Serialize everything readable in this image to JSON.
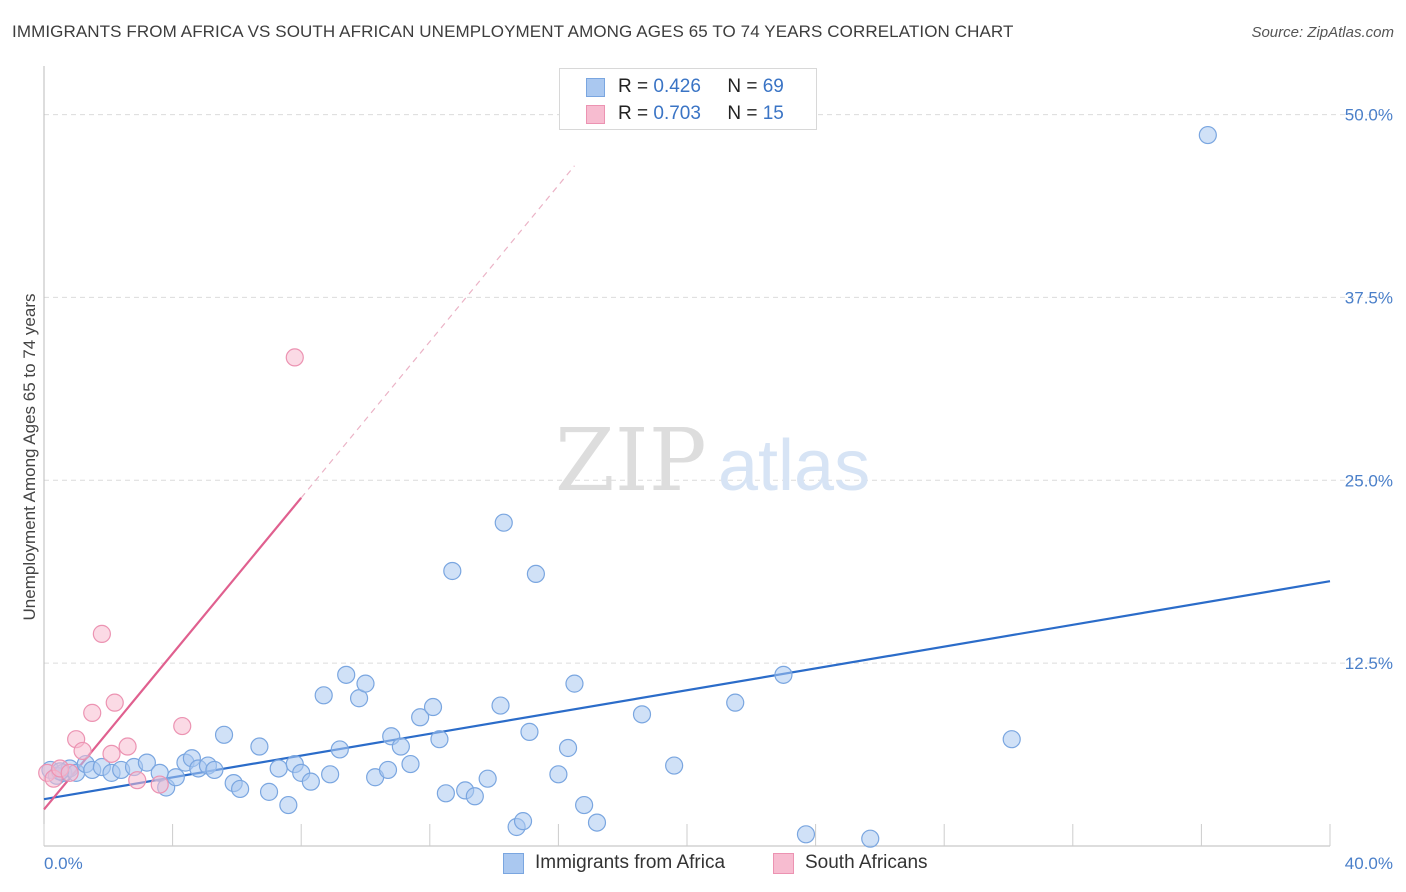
{
  "title": "IMMIGRANTS FROM AFRICA VS SOUTH AFRICAN UNEMPLOYMENT AMONG AGES 65 TO 74 YEARS CORRELATION CHART",
  "source": "Source: ZipAtlas.com",
  "watermark": {
    "zip": "ZIP",
    "atlas": "atlas"
  },
  "legend": {
    "r_label": "R =",
    "n_label": "N =",
    "series": [
      {
        "r": "0.426",
        "n": "69"
      },
      {
        "r": "0.703",
        "n": "15"
      }
    ]
  },
  "bottom_legend": [
    "Immigrants from Africa",
    "South Africans"
  ],
  "colors": {
    "blue_fill": "#aac8f0",
    "blue_stroke": "#7aa6e0",
    "blue_line": "#2b6cc9",
    "pink_fill": "#f7bcd0",
    "pink_stroke": "#ec93b2",
    "pink_line": "#e0608f",
    "grid": "#dcdcdc",
    "tick_text": "#4a7fc9"
  },
  "chart_data": {
    "type": "scatter",
    "title": "IMMIGRANTS FROM AFRICA VS SOUTH AFRICAN UNEMPLOYMENT AMONG AGES 65 TO 74 YEARS CORRELATION CHART",
    "xlabel": "",
    "ylabel": "Unemployment Among Ages 65 to 74 years",
    "xlim": [
      0,
      40
    ],
    "ylim": [
      0,
      52.5
    ],
    "x_tick_labels": [
      "0.0%",
      "40.0%"
    ],
    "y_ticks": [
      12.5,
      25.0,
      37.5,
      50.0
    ],
    "y_tick_labels": [
      "12.5%",
      "25.0%",
      "37.5%",
      "50.0%"
    ],
    "grid": true,
    "legend_position": "top-center",
    "series": [
      {
        "name": "Immigrants from Africa",
        "color": "#aac8f0",
        "r": 0.426,
        "n": 69,
        "trend": {
          "x": [
            0,
            40
          ],
          "y": [
            3.2,
            18.1
          ]
        },
        "points": [
          [
            0.2,
            5.2
          ],
          [
            0.4,
            4.8
          ],
          [
            0.6,
            5.0
          ],
          [
            0.8,
            5.3
          ],
          [
            1.0,
            5.0
          ],
          [
            1.3,
            5.6
          ],
          [
            1.5,
            5.2
          ],
          [
            1.8,
            5.4
          ],
          [
            2.1,
            5.0
          ],
          [
            2.4,
            5.2
          ],
          [
            2.8,
            5.4
          ],
          [
            3.2,
            5.7
          ],
          [
            3.6,
            5.0
          ],
          [
            3.8,
            4.0
          ],
          [
            4.1,
            4.7
          ],
          [
            4.4,
            5.7
          ],
          [
            4.6,
            6.0
          ],
          [
            4.8,
            5.3
          ],
          [
            5.1,
            5.5
          ],
          [
            5.3,
            5.2
          ],
          [
            5.6,
            7.6
          ],
          [
            5.9,
            4.3
          ],
          [
            6.1,
            3.9
          ],
          [
            6.7,
            6.8
          ],
          [
            7.0,
            3.7
          ],
          [
            7.3,
            5.3
          ],
          [
            7.6,
            2.8
          ],
          [
            7.8,
            5.6
          ],
          [
            8.0,
            5.0
          ],
          [
            8.3,
            4.4
          ],
          [
            8.7,
            10.3
          ],
          [
            8.9,
            4.9
          ],
          [
            9.2,
            6.6
          ],
          [
            9.4,
            11.7
          ],
          [
            9.8,
            10.1
          ],
          [
            10.0,
            11.1
          ],
          [
            10.3,
            4.7
          ],
          [
            10.7,
            5.2
          ],
          [
            10.8,
            7.5
          ],
          [
            11.1,
            6.8
          ],
          [
            11.4,
            5.6
          ],
          [
            11.7,
            8.8
          ],
          [
            12.1,
            9.5
          ],
          [
            12.3,
            7.3
          ],
          [
            12.5,
            3.6
          ],
          [
            12.7,
            18.8
          ],
          [
            13.1,
            3.8
          ],
          [
            13.4,
            3.4
          ],
          [
            13.8,
            4.6
          ],
          [
            14.2,
            9.6
          ],
          [
            14.3,
            22.1
          ],
          [
            14.7,
            1.3
          ],
          [
            14.9,
            1.7
          ],
          [
            15.1,
            7.8
          ],
          [
            15.3,
            18.6
          ],
          [
            16.0,
            4.9
          ],
          [
            16.3,
            6.7
          ],
          [
            16.5,
            11.1
          ],
          [
            16.8,
            2.8
          ],
          [
            17.2,
            1.6
          ],
          [
            18.6,
            9.0
          ],
          [
            19.6,
            5.5
          ],
          [
            21.5,
            9.8
          ],
          [
            23.0,
            11.7
          ],
          [
            23.7,
            0.8
          ],
          [
            25.7,
            0.5
          ],
          [
            30.1,
            7.3
          ],
          [
            36.2,
            48.6
          ],
          [
            0.5,
            5.1
          ]
        ]
      },
      {
        "name": "South Africans",
        "color": "#f7bcd0",
        "r": 0.703,
        "n": 15,
        "trend": {
          "x": [
            0,
            8
          ],
          "y": [
            2.5,
            23.8
          ]
        },
        "trend_extension": {
          "x": [
            8,
            16.5
          ],
          "y": [
            23.8,
            46.5
          ]
        },
        "points": [
          [
            0.1,
            5.0
          ],
          [
            0.3,
            4.6
          ],
          [
            0.5,
            5.3
          ],
          [
            0.8,
            5.0
          ],
          [
            1.0,
            7.3
          ],
          [
            1.2,
            6.5
          ],
          [
            1.5,
            9.1
          ],
          [
            1.8,
            14.5
          ],
          [
            2.1,
            6.3
          ],
          [
            2.2,
            9.8
          ],
          [
            2.6,
            6.8
          ],
          [
            2.9,
            4.5
          ],
          [
            3.6,
            4.2
          ],
          [
            4.3,
            8.2
          ],
          [
            7.8,
            33.4
          ]
        ]
      }
    ]
  }
}
